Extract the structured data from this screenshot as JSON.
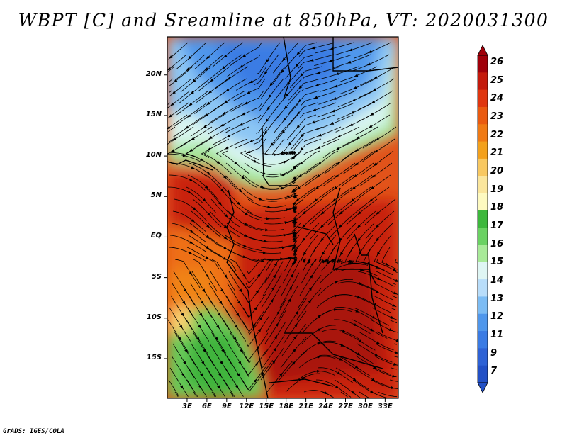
{
  "title": "WBPT [C] and Sreamline at 850hPa, VT: 2020031300",
  "footer": "GrADS: IGES/COLA",
  "map": {
    "variable": "Wet-bulb potential temperature",
    "level": "850hPa",
    "lat_ticks": [
      "20N",
      "15N",
      "10N",
      "5N",
      "EQ",
      "5S",
      "10S",
      "15S"
    ],
    "lat_values": [
      20,
      15,
      10,
      5,
      0,
      -5,
      -10,
      -15
    ],
    "lon_ticks": [
      "3E",
      "6E",
      "9E",
      "12E",
      "15E",
      "18E",
      "21E",
      "24E",
      "27E",
      "30E",
      "33E"
    ],
    "lon_values": [
      3,
      6,
      9,
      12,
      15,
      18,
      21,
      24,
      27,
      30,
      33
    ],
    "lat_range": [
      -19.9,
      24.7
    ],
    "lon_range": [
      0,
      35
    ]
  },
  "colorbar": {
    "labels": [
      "26",
      "25",
      "24",
      "23",
      "22",
      "21",
      "20",
      "19",
      "18",
      "17",
      "16",
      "15",
      "14",
      "13",
      "12",
      "11",
      "9",
      "7"
    ],
    "colors": [
      "#a0000a",
      "#c41a0c",
      "#e0360f",
      "#ea5a10",
      "#f07a14",
      "#f3a11c",
      "#f8c860",
      "#fbe69c",
      "#fefac0",
      "#3db83c",
      "#6ad262",
      "#a8ea98",
      "#dff6f4",
      "#b8ddfa",
      "#7cbcf4",
      "#4f97ec",
      "#3a7be4",
      "#2e62d6",
      "#2250c6"
    ]
  }
}
